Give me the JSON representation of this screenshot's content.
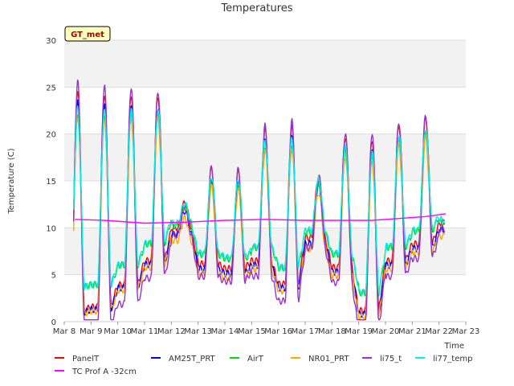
{
  "chart_data": {
    "type": "line",
    "title": "Temperatures",
    "xlabel": "Time",
    "ylabel": "Temperature (C)",
    "badge": "GT_met",
    "xlim": [
      0,
      15
    ],
    "ylim": [
      0,
      30
    ],
    "x_ticks": [
      {
        "v": 0,
        "label": "Mar 8"
      },
      {
        "v": 1,
        "label": "Mar 9"
      },
      {
        "v": 2,
        "label": "Mar 10"
      },
      {
        "v": 3,
        "label": "Mar 11"
      },
      {
        "v": 4,
        "label": "Mar 12"
      },
      {
        "v": 5,
        "label": "Mar 13"
      },
      {
        "v": 6,
        "label": "Mar 14"
      },
      {
        "v": 7,
        "label": "Mar 15"
      },
      {
        "v": 8,
        "label": "Mar 16"
      },
      {
        "v": 9,
        "label": "Mar 17"
      },
      {
        "v": 10,
        "label": "Mar 18"
      },
      {
        "v": 11,
        "label": "Mar 19"
      },
      {
        "v": 12,
        "label": "Mar 20"
      },
      {
        "v": 13,
        "label": "Mar 21"
      },
      {
        "v": 14,
        "label": "Mar 22"
      },
      {
        "v": 15,
        "label": "Mar 23"
      }
    ],
    "y_ticks": [
      0,
      5,
      10,
      15,
      20,
      25,
      30
    ],
    "grid": true,
    "legend_position": "bottom",
    "daily_profile": {
      "days": [
        0,
        1,
        2,
        3,
        4,
        5,
        6,
        7,
        8,
        9,
        10,
        11,
        12,
        13,
        14
      ],
      "min_c": [
        1.2,
        1.5,
        3.8,
        6.3,
        9.5,
        5.8,
        5.3,
        6.2,
        3.8,
        8.5,
        5.5,
        1.0,
        6.2,
        8.0,
        10.0
      ],
      "max_c": [
        23.5,
        23.2,
        23.2,
        23.0,
        12.0,
        15.5,
        15.2,
        19.5,
        19.8,
        14.8,
        18.8,
        18.5,
        20.0,
        20.8,
        11.0
      ]
    },
    "series": [
      {
        "name": "PanelT",
        "color": "#ff0000",
        "offset_c": 0.6,
        "amp": 1.05
      },
      {
        "name": "AM25T_PRT",
        "color": "#0000ff",
        "offset_c": -0.2,
        "amp": 1.0
      },
      {
        "name": "AirT",
        "color": "#00dd00",
        "offset_c": 0.5,
        "amp": 0.82
      },
      {
        "name": "NR01_PRT",
        "color": "#ffa500",
        "offset_c": -0.9,
        "amp": 0.95
      },
      {
        "name": "li75_t",
        "color": "#9a32cd",
        "offset_c": 0.0,
        "amp": 1.2
      },
      {
        "name": "li77_temp",
        "color": "#00eeee",
        "offset_c": 0.8,
        "amp": 0.85
      },
      {
        "name": "TC Prof A -32cm",
        "color": "#ff00ff",
        "x": [
          0.4,
          1.5,
          3.0,
          4.5,
          6.0,
          7.5,
          9.0,
          10.5,
          11.5,
          12.5,
          13.5,
          14.25
        ],
        "y": [
          10.9,
          10.8,
          10.5,
          10.6,
          10.8,
          10.9,
          10.8,
          10.8,
          10.8,
          11.0,
          11.2,
          11.5
        ]
      }
    ]
  }
}
